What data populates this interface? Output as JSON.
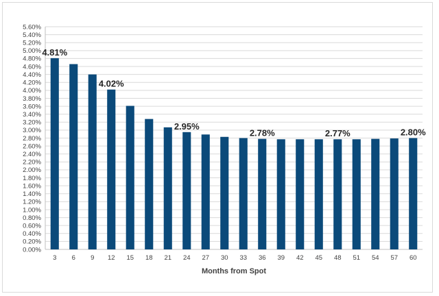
{
  "chart_data": {
    "type": "bar",
    "categories": [
      "3",
      "6",
      "9",
      "12",
      "15",
      "18",
      "21",
      "24",
      "27",
      "30",
      "33",
      "36",
      "39",
      "42",
      "45",
      "48",
      "51",
      "54",
      "57",
      "60"
    ],
    "values": [
      4.81,
      4.66,
      4.4,
      4.02,
      3.61,
      3.28,
      3.07,
      2.95,
      2.89,
      2.83,
      2.8,
      2.78,
      2.77,
      2.77,
      2.77,
      2.77,
      2.77,
      2.78,
      2.79,
      2.8
    ],
    "data_labels": [
      {
        "category": "3",
        "text": "4.81%"
      },
      {
        "category": "12",
        "text": "4.02%"
      },
      {
        "category": "24",
        "text": "2.95%"
      },
      {
        "category": "36",
        "text": "2.78%"
      },
      {
        "category": "48",
        "text": "2.77%"
      },
      {
        "category": "60",
        "text": "2.80%"
      }
    ],
    "title": "",
    "xlabel": "Months from Spot",
    "ylabel": "",
    "ylim": [
      0,
      5.6
    ],
    "ytick_step": 0.2,
    "ytick_format": "percent_2dp",
    "grid": true,
    "legend": "none",
    "bar_color": "#0b4a7a",
    "grid_color": "#d9d9d9"
  }
}
